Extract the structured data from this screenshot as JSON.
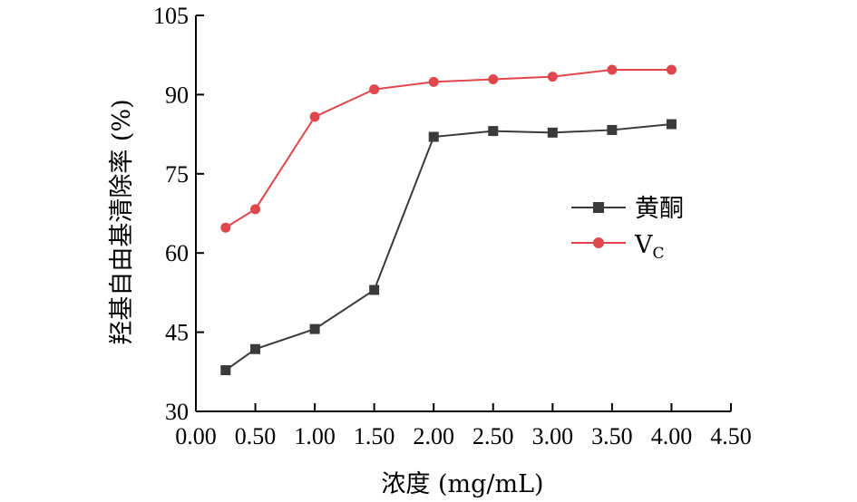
{
  "chart_data": {
    "type": "line",
    "xlabel": "浓度 (mg/mL)",
    "ylabel": "羟基自由基清除率 (%)",
    "xlim": [
      0,
      4.5
    ],
    "ylim": [
      30,
      105
    ],
    "xticks": [
      "0.00",
      "0.50",
      "1.00",
      "1.50",
      "2.00",
      "2.50",
      "3.00",
      "3.50",
      "4.00",
      "4.50"
    ],
    "yticks": [
      "30",
      "45",
      "60",
      "75",
      "90",
      "105"
    ],
    "grid": false,
    "legend_position": "center-right",
    "series": [
      {
        "name": "黄酮",
        "color": "#3a3a3a",
        "marker": "square",
        "x": [
          0.25,
          0.5,
          1.0,
          1.5,
          2.0,
          2.5,
          3.0,
          3.5,
          4.0
        ],
        "values": [
          37.8,
          41.8,
          45.6,
          53.0,
          82.0,
          83.1,
          82.8,
          83.3,
          84.4
        ]
      },
      {
        "name": "Vc",
        "name_main": "V",
        "name_sub": "C",
        "color": "#e0474c",
        "marker": "circle",
        "x": [
          0.25,
          0.5,
          1.0,
          1.5,
          2.0,
          2.5,
          3.0,
          3.5,
          4.0
        ],
        "values": [
          64.8,
          68.3,
          85.8,
          91.0,
          92.4,
          92.9,
          93.4,
          94.7,
          94.7
        ]
      }
    ]
  }
}
